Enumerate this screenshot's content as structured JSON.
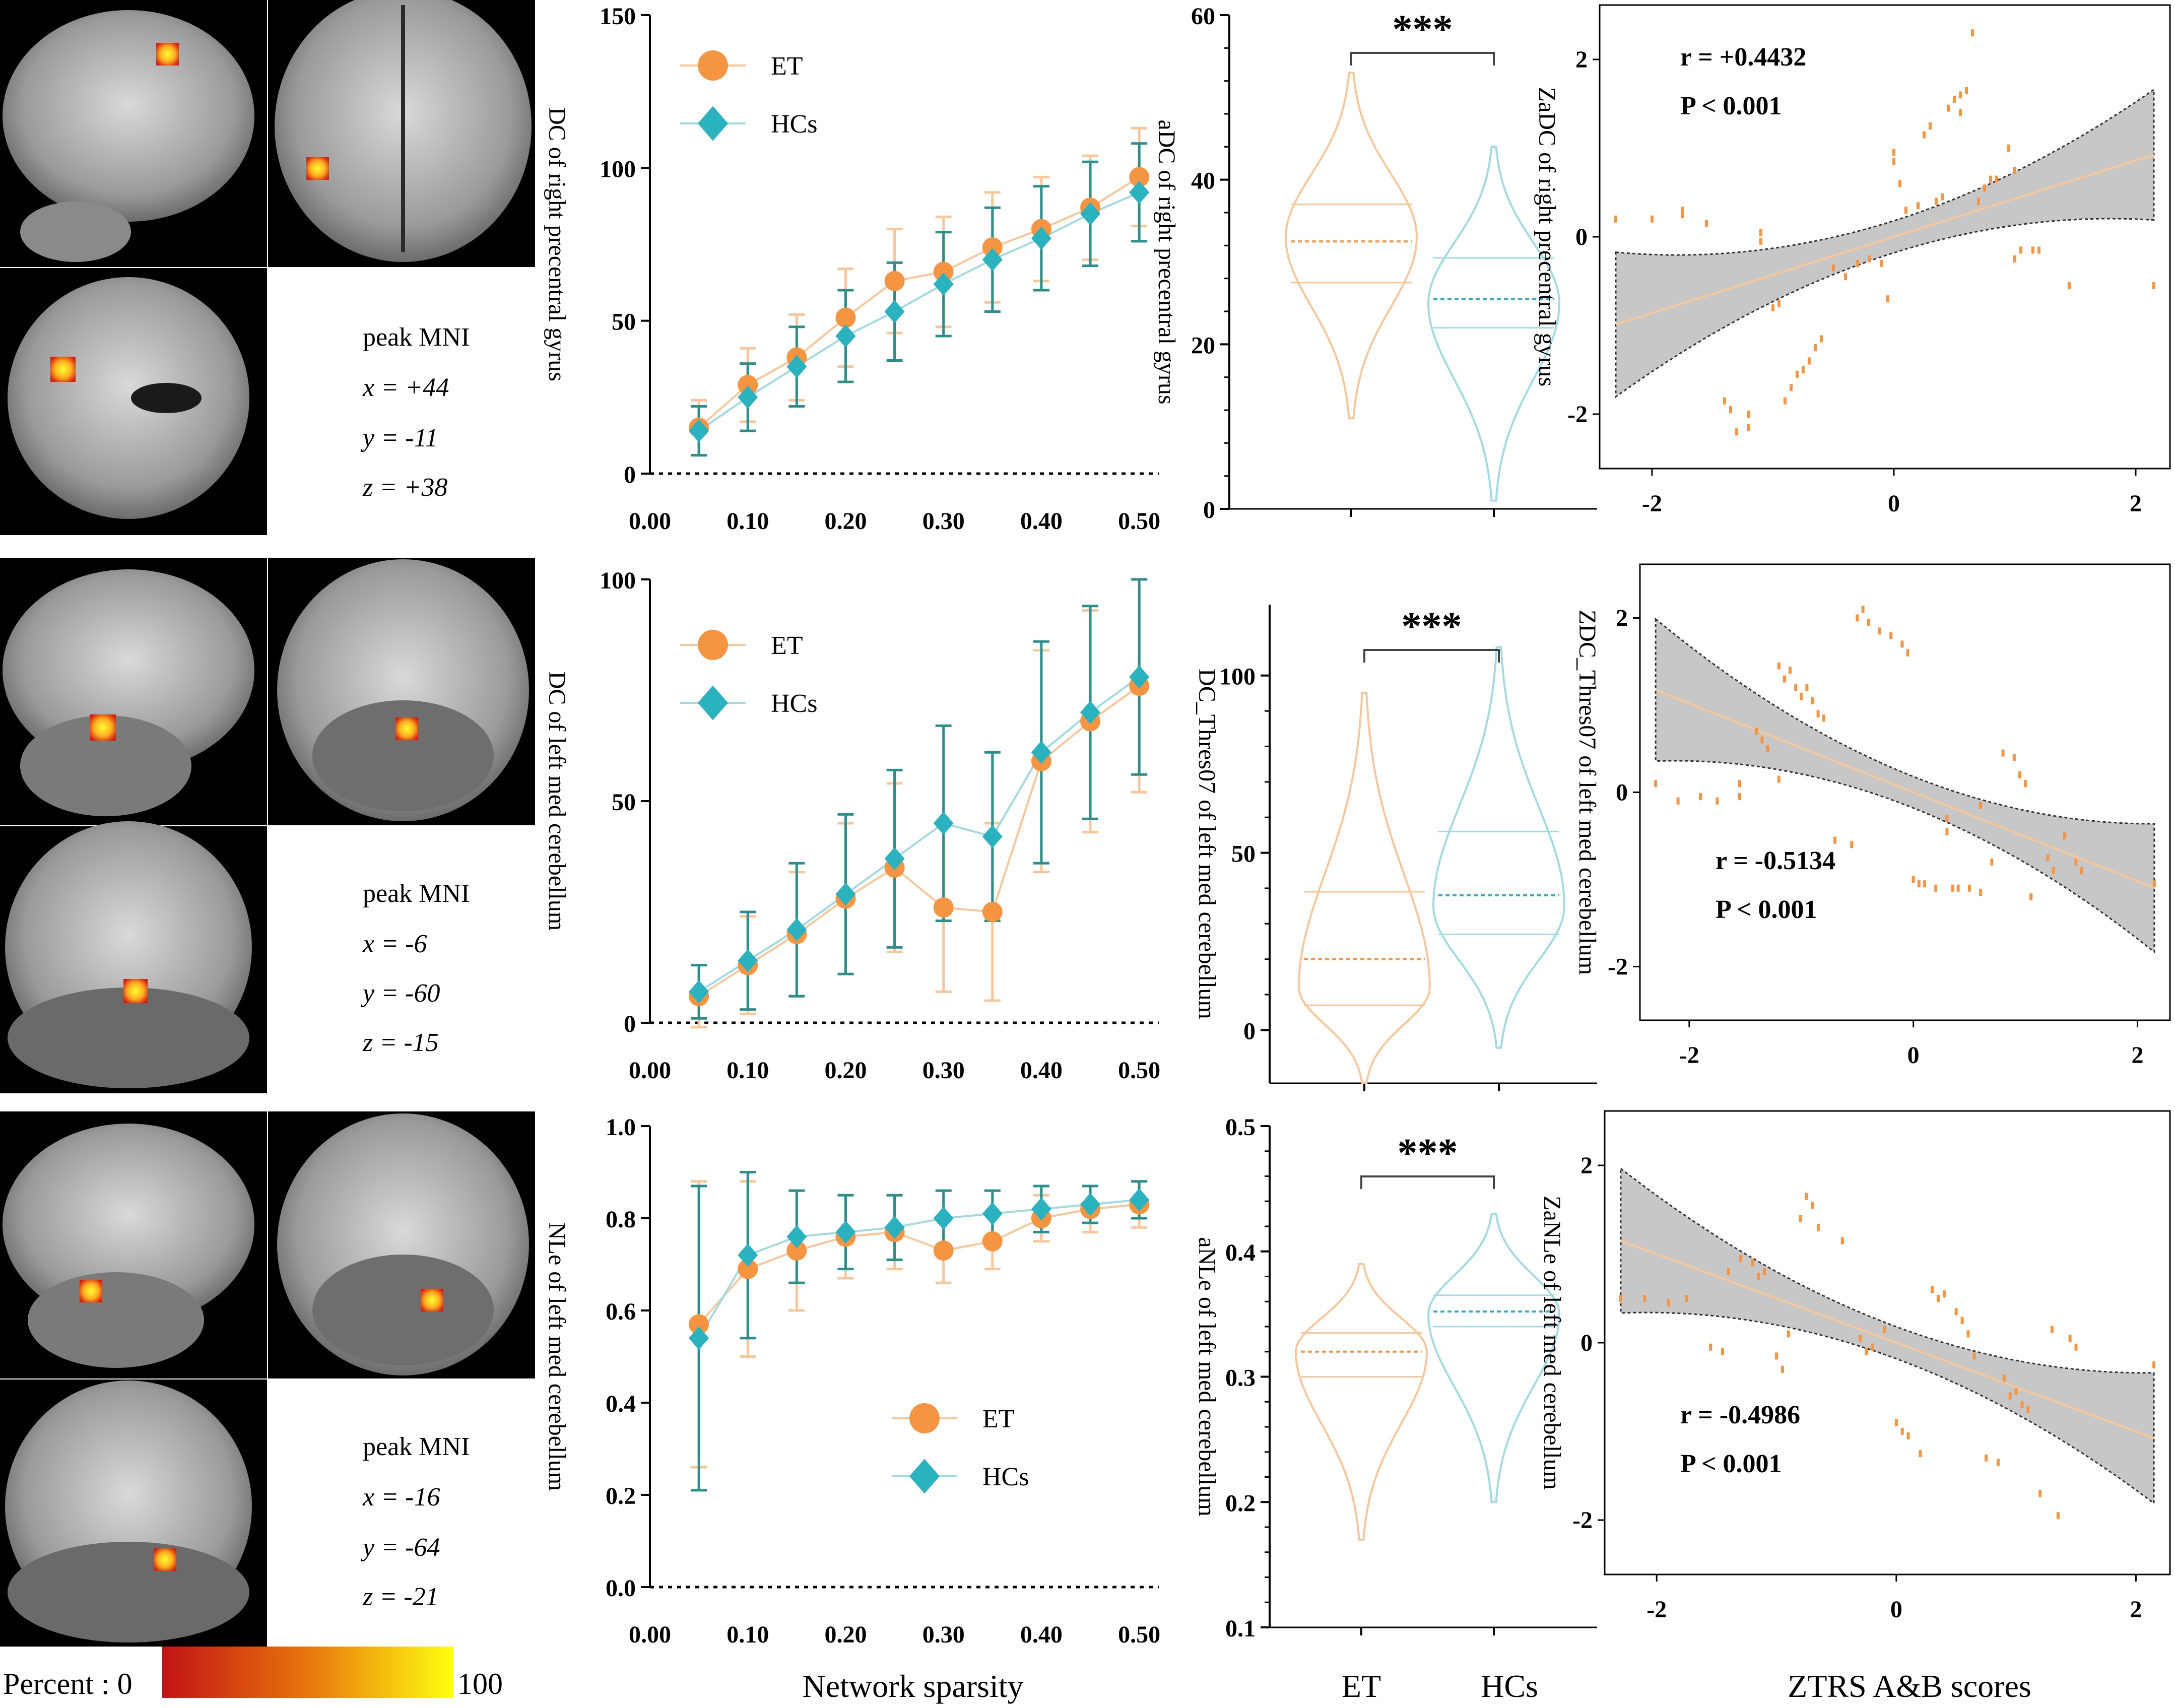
{
  "colors": {
    "et": "#f59542",
    "hc": "#2bb2bf",
    "et_light": "#f7c79a",
    "hc_light": "#9fdbe1",
    "ci_fill": "#c7c7c7",
    "brain_bg": "#000000"
  },
  "colorbar": {
    "label": "Percent : 0",
    "max_label": "100",
    "stops": [
      "#c21414",
      "#e8750d",
      "#ffff10"
    ]
  },
  "common": {
    "x_axis_label": "Network sparsity",
    "violin_x_label": "",
    "scatter_x_label": "ZTRS A&B scores",
    "group_et": "ET",
    "group_hc": "HCs",
    "significance": "***"
  },
  "rows": [
    {
      "brain": {
        "title": "peak MNI",
        "x_label": "x = +44",
        "y_label": "y = -11",
        "z_label": "z = +38"
      },
      "line_ylabel": "DC of right precentral gyrus",
      "violin_ylabel": "aDC of right precentral gyrus",
      "scatter_ylabel": "ZaDC of right precentral gyrus",
      "r_label": "r = +0.4432",
      "p_label": "P < 0.001"
    },
    {
      "brain": {
        "title": "peak MNI",
        "x_label": "x = -6",
        "y_label": "y = -60",
        "z_label": "z = -15"
      },
      "line_ylabel": "DC of left med cerebellum",
      "violin_ylabel": "DC_Thres07  of left med cerebellum",
      "scatter_ylabel": "ZDC_Thres07  of left med cerebellum",
      "r_label": "r = -0.5134",
      "p_label": "P < 0.001"
    },
    {
      "brain": {
        "title": "peak MNI",
        "x_label": "x = -16",
        "y_label": "y = -64",
        "z_label": "z = -21"
      },
      "line_ylabel": "NLe of left med cerebellum",
      "violin_ylabel": "aNLe of left med cerebellum",
      "scatter_ylabel": "ZaNLe of left med cerebellum",
      "r_label": "r = -0.4986",
      "p_label": "P < 0.001"
    }
  ],
  "chart_data": [
    {
      "type": "line",
      "panel": "row1-line",
      "x": [
        0.05,
        0.1,
        0.15,
        0.2,
        0.25,
        0.3,
        0.35,
        0.4,
        0.45,
        0.5
      ],
      "xlim": [
        0.0,
        0.52
      ],
      "ylim": [
        0,
        150
      ],
      "xticks": [
        0.0,
        0.1,
        0.2,
        0.3,
        0.4,
        0.5
      ],
      "yticks": [
        0,
        50,
        100,
        150
      ],
      "xtick_labels": [
        "0.00",
        "0.10",
        "0.20",
        "0.30",
        "0.40",
        "0.50"
      ],
      "ytick_labels": [
        "0",
        "50",
        "100",
        "150"
      ],
      "ylabel": "DC of right precentral gyrus",
      "xlabel": "Network sparsity",
      "legend_position": "top-left",
      "series": [
        {
          "name": "ET",
          "values": [
            15,
            29,
            38,
            51,
            63,
            66,
            74,
            80,
            87,
            97
          ],
          "errors": [
            9,
            12,
            14,
            16,
            17,
            18,
            18,
            17,
            17,
            16
          ]
        },
        {
          "name": "HCs",
          "values": [
            14,
            25,
            35,
            45,
            53,
            62,
            70,
            77,
            85,
            92
          ],
          "errors": [
            8,
            11,
            13,
            15,
            16,
            17,
            17,
            17,
            17,
            16
          ]
        }
      ]
    },
    {
      "type": "violin",
      "panel": "row1-violin",
      "ylim": [
        0,
        60
      ],
      "yticks": [
        0,
        20,
        40,
        60
      ],
      "ytick_labels": [
        "0",
        "20",
        "40",
        "60"
      ],
      "ylabel": "aDC of right precentral gyrus",
      "significance": "***",
      "groups": [
        {
          "name": "ET",
          "min": 11,
          "max": 53,
          "q1": 27.5,
          "median": 32.5,
          "q3": 37,
          "mode": 33
        },
        {
          "name": "HCs",
          "min": 1,
          "max": 44,
          "q1": 22,
          "median": 25.5,
          "q3": 30.5,
          "mode": 25
        }
      ]
    },
    {
      "type": "scatter",
      "panel": "row1-scatter",
      "xlim": [
        -2.35,
        2.2
      ],
      "ylim": [
        -2.5,
        2.5
      ],
      "xticks": [
        -2,
        0,
        2
      ],
      "yticks": [
        -2,
        0,
        2
      ],
      "xtick_labels": [
        "-2",
        "0",
        "2"
      ],
      "ytick_labels": [
        "-2",
        "0",
        "2"
      ],
      "ylabel": "ZaDC of right precentral gyrus",
      "xlabel": "ZTRS A&B scores",
      "r": 0.4432,
      "p": "< 0.001",
      "fit": {
        "slope": 0.43,
        "intercept": 0.0
      },
      "points": [
        [
          -2.3,
          0.2
        ],
        [
          -2.0,
          0.2
        ],
        [
          -1.75,
          0.25
        ],
        [
          -1.75,
          0.3
        ],
        [
          -1.55,
          0.15
        ],
        [
          -1.4,
          -1.85
        ],
        [
          -1.35,
          -1.95
        ],
        [
          -1.3,
          -2.2
        ],
        [
          -1.2,
          -2.15
        ],
        [
          -1.2,
          -2.0
        ],
        [
          -1.1,
          0.05
        ],
        [
          -1.1,
          -0.05
        ],
        [
          -1.0,
          -0.8
        ],
        [
          -0.95,
          -0.75
        ],
        [
          -0.9,
          -1.85
        ],
        [
          -0.85,
          -1.7
        ],
        [
          -0.8,
          -1.55
        ],
        [
          -0.75,
          -1.5
        ],
        [
          -0.7,
          -1.4
        ],
        [
          -0.65,
          -1.25
        ],
        [
          -0.6,
          -1.15
        ],
        [
          -0.5,
          -0.35
        ],
        [
          -0.4,
          -0.45
        ],
        [
          -0.3,
          -0.3
        ],
        [
          -0.2,
          -0.25
        ],
        [
          -0.1,
          -0.3
        ],
        [
          -0.05,
          -0.7
        ],
        [
          0.0,
          0.95
        ],
        [
          0.0,
          0.85
        ],
        [
          0.05,
          0.6
        ],
        [
          0.1,
          0.3
        ],
        [
          0.2,
          0.35
        ],
        [
          0.25,
          1.15
        ],
        [
          0.3,
          1.25
        ],
        [
          0.35,
          0.4
        ],
        [
          0.4,
          0.45
        ],
        [
          0.45,
          1.45
        ],
        [
          0.5,
          1.55
        ],
        [
          0.55,
          1.6
        ],
        [
          0.55,
          1.4
        ],
        [
          0.6,
          1.65
        ],
        [
          0.65,
          2.3
        ],
        [
          0.7,
          0.4
        ],
        [
          0.75,
          0.55
        ],
        [
          0.8,
          0.65
        ],
        [
          0.85,
          0.65
        ],
        [
          0.95,
          1.0
        ],
        [
          1.0,
          0.75
        ],
        [
          1.0,
          -0.25
        ],
        [
          1.05,
          -0.15
        ],
        [
          1.15,
          -0.15
        ],
        [
          1.2,
          -0.15
        ],
        [
          1.45,
          -0.55
        ],
        [
          2.15,
          -0.55
        ]
      ]
    },
    {
      "type": "line",
      "panel": "row2-line",
      "x": [
        0.05,
        0.1,
        0.15,
        0.2,
        0.25,
        0.3,
        0.35,
        0.4,
        0.45,
        0.5
      ],
      "xlim": [
        0.0,
        0.52
      ],
      "ylim": [
        0,
        100
      ],
      "xticks": [
        0.0,
        0.1,
        0.2,
        0.3,
        0.4,
        0.5
      ],
      "yticks": [
        0,
        50,
        100
      ],
      "xtick_labels": [
        "0.00",
        "0.10",
        "0.20",
        "0.30",
        "0.40",
        "0.50"
      ],
      "ytick_labels": [
        "0",
        "50",
        "100"
      ],
      "ylabel": "DC of left med cerebellum",
      "xlabel": "Network sparsity",
      "legend_position": "top-left",
      "series": [
        {
          "name": "ET",
          "values": [
            6,
            13,
            20,
            28,
            35,
            26,
            25,
            59,
            68,
            76
          ],
          "errors": [
            7,
            11,
            14,
            17,
            19,
            19,
            20,
            25,
            25,
            24
          ]
        },
        {
          "name": "HCs",
          "values": [
            7,
            14,
            21,
            29,
            37,
            45,
            42,
            61,
            70,
            78
          ],
          "errors": [
            6,
            11,
            15,
            18,
            20,
            22,
            19,
            25,
            24,
            22
          ]
        }
      ]
    },
    {
      "type": "violin",
      "panel": "row2-violin",
      "ylim": [
        -15,
        120
      ],
      "yticks": [
        0,
        50,
        100
      ],
      "ytick_labels": [
        "0",
        "50",
        "100"
      ],
      "ylabel": "DC_Thres07  of left med cerebellum",
      "significance": "***",
      "groups": [
        {
          "name": "ET",
          "min": -15,
          "max": 95,
          "q1": 7,
          "median": 20,
          "q3": 39,
          "mode": 12
        },
        {
          "name": "HCs",
          "min": -5,
          "max": 108,
          "q1": 27,
          "median": 38,
          "q3": 56,
          "mode": 35
        }
      ]
    },
    {
      "type": "scatter",
      "panel": "row2-scatter",
      "xlim": [
        -2.35,
        2.2
      ],
      "ylim": [
        -2.5,
        2.5
      ],
      "xticks": [
        -2,
        0,
        2
      ],
      "yticks": [
        -2,
        0,
        2
      ],
      "xtick_labels": [
        "-2",
        "0",
        "2"
      ],
      "ytick_labels": [
        "-2",
        "0",
        "2"
      ],
      "ylabel": "ZDC_Thres07  of left med cerebellum",
      "xlabel": "ZTRS A&B scores",
      "r": -0.5134,
      "p": "< 0.001",
      "fit": {
        "slope": -0.51,
        "intercept": 0.0
      },
      "points": [
        [
          -2.3,
          0.1
        ],
        [
          -2.1,
          -0.1
        ],
        [
          -1.9,
          -0.05
        ],
        [
          -1.75,
          -0.1
        ],
        [
          -1.55,
          -0.05
        ],
        [
          -1.55,
          0.1
        ],
        [
          -1.4,
          0.7
        ],
        [
          -1.35,
          0.6
        ],
        [
          -1.3,
          0.5
        ],
        [
          -1.2,
          0.15
        ],
        [
          -1.2,
          1.45
        ],
        [
          -1.15,
          1.3
        ],
        [
          -1.1,
          1.4
        ],
        [
          -1.05,
          1.2
        ],
        [
          -1.0,
          1.1
        ],
        [
          -0.95,
          1.2
        ],
        [
          -0.9,
          1.05
        ],
        [
          -0.85,
          0.9
        ],
        [
          -0.8,
          0.85
        ],
        [
          -0.7,
          -0.55
        ],
        [
          -0.55,
          -0.6
        ],
        [
          -0.5,
          2.0
        ],
        [
          -0.45,
          2.1
        ],
        [
          -0.4,
          1.95
        ],
        [
          -0.3,
          1.85
        ],
        [
          -0.2,
          1.8
        ],
        [
          -0.1,
          1.7
        ],
        [
          -0.05,
          1.6
        ],
        [
          0.0,
          -1.0
        ],
        [
          0.05,
          -1.05
        ],
        [
          0.1,
          -1.05
        ],
        [
          0.2,
          -1.1
        ],
        [
          0.3,
          -0.3
        ],
        [
          0.3,
          -0.45
        ],
        [
          0.35,
          -1.1
        ],
        [
          0.4,
          -1.1
        ],
        [
          0.5,
          -1.1
        ],
        [
          0.6,
          -1.15
        ],
        [
          0.6,
          -0.15
        ],
        [
          0.7,
          -0.8
        ],
        [
          0.8,
          0.45
        ],
        [
          0.9,
          0.4
        ],
        [
          0.95,
          0.2
        ],
        [
          1.0,
          0.1
        ],
        [
          1.05,
          -1.2
        ],
        [
          1.2,
          -0.75
        ],
        [
          1.25,
          -0.9
        ],
        [
          1.35,
          -0.5
        ],
        [
          1.45,
          -0.8
        ],
        [
          1.5,
          -0.9
        ],
        [
          2.15,
          -1.05
        ]
      ]
    },
    {
      "type": "line",
      "panel": "row3-line",
      "x": [
        0.05,
        0.1,
        0.15,
        0.2,
        0.25,
        0.3,
        0.35,
        0.4,
        0.45,
        0.5
      ],
      "xlim": [
        0.0,
        0.52
      ],
      "ylim": [
        0.0,
        1.0
      ],
      "xticks": [
        0.0,
        0.1,
        0.2,
        0.3,
        0.4,
        0.5
      ],
      "yticks": [
        0.0,
        0.2,
        0.4,
        0.6,
        0.8,
        1.0
      ],
      "xtick_labels": [
        "0.00",
        "0.10",
        "0.20",
        "0.30",
        "0.40",
        "0.50"
      ],
      "ytick_labels": [
        "0.0",
        "0.2",
        "0.4",
        "0.6",
        "0.8",
        "1.0"
      ],
      "ylabel": "NLe of left med cerebellum",
      "xlabel": "Network sparsity",
      "legend_position": "bottom-right",
      "series": [
        {
          "name": "ET",
          "values": [
            0.57,
            0.69,
            0.73,
            0.76,
            0.77,
            0.73,
            0.75,
            0.8,
            0.82,
            0.83
          ],
          "errors": [
            0.31,
            0.19,
            0.13,
            0.09,
            0.08,
            0.07,
            0.06,
            0.05,
            0.05,
            0.05
          ]
        },
        {
          "name": "HCs",
          "values": [
            0.54,
            0.72,
            0.76,
            0.77,
            0.78,
            0.8,
            0.81,
            0.82,
            0.83,
            0.84
          ],
          "errors": [
            0.33,
            0.18,
            0.1,
            0.08,
            0.07,
            0.06,
            0.05,
            0.05,
            0.04,
            0.04
          ]
        }
      ]
    },
    {
      "type": "violin",
      "panel": "row3-violin",
      "ylim": [
        0.1,
        0.5
      ],
      "yticks": [
        0.1,
        0.2,
        0.3,
        0.4,
        0.5
      ],
      "ytick_labels": [
        "0.1",
        "0.2",
        "0.3",
        "0.4",
        "0.5"
      ],
      "ylabel": "aNLe of left med cerebellum",
      "significance": "***",
      "groups": [
        {
          "name": "ET",
          "min": 0.17,
          "max": 0.39,
          "q1": 0.3,
          "median": 0.32,
          "q3": 0.335,
          "mode": 0.32
        },
        {
          "name": "HCs",
          "min": 0.2,
          "max": 0.43,
          "q1": 0.34,
          "median": 0.352,
          "q3": 0.365,
          "mode": 0.35
        }
      ]
    },
    {
      "type": "scatter",
      "panel": "row3-scatter",
      "xlim": [
        -2.35,
        2.2
      ],
      "ylim": [
        -2.5,
        2.5
      ],
      "xticks": [
        -2,
        0,
        2
      ],
      "yticks": [
        -2,
        0,
        2
      ],
      "xtick_labels": [
        "-2",
        "0",
        "2"
      ],
      "ytick_labels": [
        "-2",
        "0",
        "2"
      ],
      "ylabel": "ZaNLe of left med cerebellum",
      "xlabel": "ZTRS A&B scores",
      "r": -0.4986,
      "p": "< 0.001",
      "fit": {
        "slope": -0.5,
        "intercept": 0.0
      },
      "points": [
        [
          -2.3,
          0.5
        ],
        [
          -2.1,
          0.5
        ],
        [
          -1.9,
          0.45
        ],
        [
          -1.75,
          0.5
        ],
        [
          -1.55,
          -0.05
        ],
        [
          -1.45,
          -0.1
        ],
        [
          -1.4,
          0.8
        ],
        [
          -1.3,
          0.95
        ],
        [
          -1.2,
          0.9
        ],
        [
          -1.15,
          0.75
        ],
        [
          -1.1,
          0.8
        ],
        [
          -1.0,
          -0.15
        ],
        [
          -0.95,
          -0.3
        ],
        [
          -0.9,
          0.1
        ],
        [
          -0.8,
          1.4
        ],
        [
          -0.75,
          1.65
        ],
        [
          -0.7,
          1.55
        ],
        [
          -0.65,
          1.3
        ],
        [
          -0.45,
          1.15
        ],
        [
          -0.3,
          0.05
        ],
        [
          -0.25,
          -0.1
        ],
        [
          -0.2,
          -0.05
        ],
        [
          -0.1,
          0.15
        ],
        [
          0.0,
          -0.9
        ],
        [
          0.05,
          -1.0
        ],
        [
          0.1,
          -1.05
        ],
        [
          0.2,
          -1.25
        ],
        [
          0.3,
          0.6
        ],
        [
          0.35,
          0.5
        ],
        [
          0.4,
          0.55
        ],
        [
          0.5,
          0.35
        ],
        [
          0.55,
          0.25
        ],
        [
          0.6,
          0.1
        ],
        [
          0.65,
          -0.15
        ],
        [
          0.75,
          -1.3
        ],
        [
          0.85,
          -1.35
        ],
        [
          0.9,
          -0.4
        ],
        [
          0.95,
          -0.6
        ],
        [
          1.0,
          -0.55
        ],
        [
          1.05,
          -0.7
        ],
        [
          1.1,
          -0.75
        ],
        [
          1.2,
          -1.7
        ],
        [
          1.3,
          0.15
        ],
        [
          1.35,
          -1.95
        ],
        [
          1.45,
          0.05
        ],
        [
          1.5,
          -0.05
        ],
        [
          2.15,
          -0.25
        ]
      ]
    }
  ]
}
